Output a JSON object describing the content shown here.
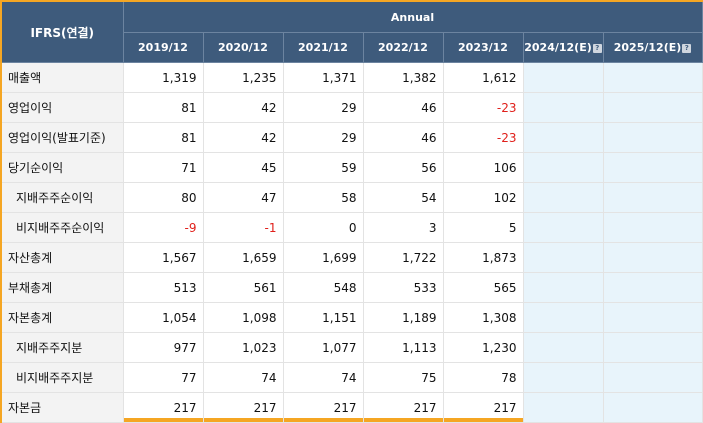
{
  "table": {
    "corner_label": "IFRS(연결)",
    "period_label": "Annual",
    "years": [
      {
        "label": "2019/12",
        "estimate": false
      },
      {
        "label": "2020/12",
        "estimate": false
      },
      {
        "label": "2021/12",
        "estimate": false
      },
      {
        "label": "2022/12",
        "estimate": false
      },
      {
        "label": "2023/12",
        "estimate": false
      },
      {
        "label": "2024/12(E)",
        "estimate": true
      },
      {
        "label": "2025/12(E)",
        "estimate": true
      }
    ],
    "estimate_icon": "?",
    "rows": [
      {
        "label": "매출액",
        "sub": false,
        "values": [
          "1,319",
          "1,235",
          "1,371",
          "1,382",
          "1,612",
          "",
          ""
        ]
      },
      {
        "label": "영업이익",
        "sub": false,
        "values": [
          "81",
          "42",
          "29",
          "46",
          "-23",
          "",
          ""
        ]
      },
      {
        "label": "영업이익(발표기준)",
        "sub": false,
        "values": [
          "81",
          "42",
          "29",
          "46",
          "-23",
          "",
          ""
        ]
      },
      {
        "label": "당기순이익",
        "sub": false,
        "values": [
          "71",
          "45",
          "59",
          "56",
          "106",
          "",
          ""
        ]
      },
      {
        "label": "지배주주순이익",
        "sub": true,
        "values": [
          "80",
          "47",
          "58",
          "54",
          "102",
          "",
          ""
        ]
      },
      {
        "label": "비지배주주순이익",
        "sub": true,
        "values": [
          "-9",
          "-1",
          "0",
          "3",
          "5",
          "",
          ""
        ]
      },
      {
        "label": "자산총계",
        "sub": false,
        "values": [
          "1,567",
          "1,659",
          "1,699",
          "1,722",
          "1,873",
          "",
          ""
        ]
      },
      {
        "label": "부채총계",
        "sub": false,
        "values": [
          "513",
          "561",
          "548",
          "533",
          "565",
          "",
          ""
        ]
      },
      {
        "label": "자본총계",
        "sub": false,
        "values": [
          "1,054",
          "1,098",
          "1,151",
          "1,189",
          "1,308",
          "",
          ""
        ]
      },
      {
        "label": "지배주주지분",
        "sub": true,
        "values": [
          "977",
          "1,023",
          "1,077",
          "1,113",
          "1,230",
          "",
          ""
        ]
      },
      {
        "label": "비지배주주지분",
        "sub": true,
        "values": [
          "77",
          "74",
          "74",
          "75",
          "78",
          "",
          ""
        ]
      },
      {
        "label": "자본금",
        "sub": false,
        "values": [
          "217",
          "217",
          "217",
          "217",
          "217",
          "",
          ""
        ]
      }
    ]
  },
  "colors": {
    "header_bg": "#3e5b7c",
    "frame_border": "#f5a623",
    "negative_text": "#e0201b",
    "estimate_bg": "#e8f4fb"
  }
}
